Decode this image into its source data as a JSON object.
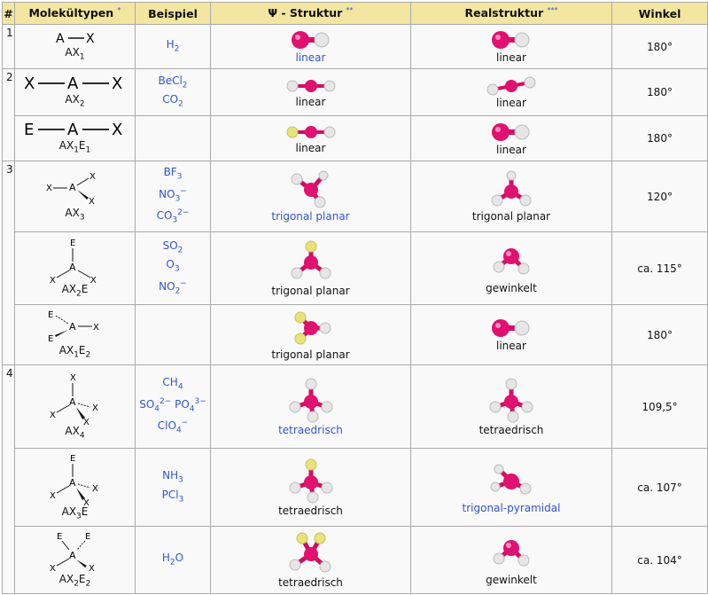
{
  "headers": {
    "num": "#",
    "type": "Molekültypen",
    "type_sup": "*",
    "example": "Beispiel",
    "psi": "Ψ - Struktur",
    "psi_sup": "**",
    "real": "Realstruktur",
    "real_sup": "***",
    "angle": "Winkel"
  },
  "groups": [
    "1",
    "2",
    "3",
    "4"
  ],
  "rows": [
    {
      "type_label": "AX1",
      "psi": "linear",
      "real": "linear",
      "angle": "180°"
    },
    {
      "type_label": "AX2",
      "psi": "linear",
      "real": "linear",
      "angle": "180°"
    },
    {
      "type_label": "AX1E1",
      "psi": "linear",
      "real": "linear",
      "angle": "180°"
    },
    {
      "type_label": "AX3",
      "psi": "trigonal planar",
      "real": "trigonal planar",
      "angle": "120°"
    },
    {
      "type_label": "AX2E",
      "psi": "trigonal planar",
      "real": "gewinkelt",
      "angle": "ca. 115°"
    },
    {
      "type_label": "AX1E2",
      "psi": "trigonal planar",
      "real": "linear",
      "angle": "180°"
    },
    {
      "type_label": "AX4",
      "psi": "tetraedrisch",
      "real": "tetraedrisch",
      "angle": "109,5°"
    },
    {
      "type_label": "AX3E",
      "psi": "tetraedrisch",
      "real": "trigonal-pyramidal",
      "angle": "ca. 107°"
    },
    {
      "type_label": "AX2E2",
      "psi": "tetraedrisch",
      "real": "gewinkelt",
      "angle": "ca. 104°"
    }
  ],
  "examples": {
    "r0": [
      "H2"
    ],
    "r1": [
      "BeCl2",
      "CO2"
    ],
    "r3": [
      "BF3",
      "NO3−",
      "CO32−"
    ],
    "r4": [
      "SO2",
      "O3",
      "NO2−"
    ],
    "r6": [
      "CH4",
      "SO42− PO43−",
      "ClO4−"
    ],
    "r7": [
      "NH3",
      "PCl3"
    ],
    "r8": [
      "H2O"
    ]
  },
  "schematic_letters": {
    "central": "A",
    "ligand": "X",
    "lone_pair": "E"
  },
  "colors": {
    "header_bg": "#f2e6a0",
    "cell_bg": "#f9f9f9",
    "link": "#3355cc",
    "central_atom": "#e0116f",
    "ligand_atom": "#e6e6e6",
    "lone_pair": "#e8e27a"
  }
}
